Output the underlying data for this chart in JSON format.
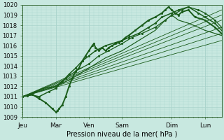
{
  "xlabel": "Pression niveau de la mer( hPa )",
  "ylim": [
    1009,
    1020
  ],
  "xlim": [
    0,
    6
  ],
  "yticks": [
    1009,
    1010,
    1011,
    1012,
    1013,
    1014,
    1015,
    1016,
    1017,
    1018,
    1019,
    1020
  ],
  "xtick_labels": [
    "Jeu",
    "Mar",
    "Ven",
    "Sam",
    "Dim",
    "Lun"
  ],
  "xtick_positions": [
    0.0,
    1.0,
    2.0,
    3.0,
    4.5,
    5.5
  ],
  "background_color": "#c8e8e0",
  "grid_color": "#aad4cc",
  "line_color": "#1a5c1a",
  "straight_lines": [
    {
      "x0": 0.0,
      "y0": 1011.0,
      "x1": 6.0,
      "y1": 1016.5,
      "lw": 0.6
    },
    {
      "x0": 0.0,
      "y0": 1011.0,
      "x1": 6.0,
      "y1": 1017.2,
      "lw": 0.6
    },
    {
      "x0": 0.0,
      "y0": 1011.0,
      "x1": 6.0,
      "y1": 1017.8,
      "lw": 0.6
    },
    {
      "x0": 0.0,
      "y0": 1011.0,
      "x1": 6.0,
      "y1": 1018.5,
      "lw": 0.6
    },
    {
      "x0": 0.0,
      "y0": 1011.0,
      "x1": 6.0,
      "y1": 1019.0,
      "lw": 0.6
    },
    {
      "x0": 0.0,
      "y0": 1011.0,
      "x1": 6.0,
      "y1": 1019.5,
      "lw": 0.6
    }
  ],
  "wiggly_lines": [
    {
      "x": [
        0.0,
        0.15,
        0.3,
        0.5,
        0.7,
        0.9,
        1.0,
        1.05,
        1.1,
        1.2,
        1.3,
        1.4,
        1.5,
        1.6,
        1.7,
        1.8,
        1.9,
        2.0,
        2.1,
        2.15,
        2.2,
        2.3,
        2.4,
        2.5,
        2.6,
        2.7,
        2.8,
        2.9,
        3.0,
        3.1,
        3.2,
        3.4,
        3.6,
        3.8,
        4.0,
        4.2,
        4.3,
        4.4,
        4.5,
        4.6,
        4.7,
        4.8,
        5.0,
        5.2,
        5.5,
        5.8,
        6.0
      ],
      "y": [
        1011.0,
        1011.1,
        1011.2,
        1010.8,
        1010.4,
        1009.8,
        1009.5,
        1009.6,
        1009.8,
        1010.2,
        1011.0,
        1012.0,
        1012.8,
        1013.5,
        1013.8,
        1014.5,
        1015.0,
        1015.5,
        1016.0,
        1016.2,
        1015.8,
        1015.5,
        1015.8,
        1015.5,
        1015.8,
        1016.0,
        1016.2,
        1016.3,
        1016.5,
        1016.8,
        1017.0,
        1017.5,
        1018.0,
        1018.5,
        1018.8,
        1019.2,
        1019.5,
        1019.8,
        1019.5,
        1019.2,
        1019.0,
        1019.3,
        1019.5,
        1018.8,
        1018.5,
        1017.8,
        1017.2
      ],
      "lw": 1.4,
      "marker": true
    },
    {
      "x": [
        0.0,
        0.2,
        0.5,
        0.8,
        1.0,
        1.2,
        1.4,
        1.6,
        1.8,
        2.0,
        2.2,
        2.5,
        2.8,
        3.0,
        3.2,
        3.5,
        3.8,
        4.0,
        4.2,
        4.5,
        4.7,
        5.0,
        5.3,
        5.5,
        5.8,
        6.0
      ],
      "y": [
        1011.0,
        1011.2,
        1011.0,
        1011.5,
        1011.8,
        1012.5,
        1013.2,
        1013.8,
        1014.5,
        1015.0,
        1015.5,
        1016.0,
        1016.3,
        1016.5,
        1016.8,
        1017.2,
        1017.8,
        1018.2,
        1018.8,
        1019.2,
        1019.5,
        1019.8,
        1019.2,
        1018.8,
        1018.2,
        1017.5
      ],
      "lw": 1.1,
      "marker": true
    },
    {
      "x": [
        0.0,
        0.3,
        0.6,
        1.0,
        1.3,
        1.6,
        2.0,
        2.3,
        2.6,
        3.0,
        3.3,
        3.6,
        4.0,
        4.3,
        4.5,
        4.8,
        5.0,
        5.3,
        5.5,
        5.8,
        6.0
      ],
      "y": [
        1011.0,
        1011.3,
        1011.8,
        1012.0,
        1012.8,
        1013.5,
        1014.2,
        1015.0,
        1015.5,
        1016.2,
        1016.8,
        1017.2,
        1017.8,
        1018.5,
        1019.0,
        1019.5,
        1019.8,
        1019.5,
        1019.2,
        1018.5,
        1017.8
      ],
      "lw": 0.9,
      "marker": true
    },
    {
      "x": [
        0.0,
        0.5,
        1.0,
        1.5,
        2.0,
        2.5,
        3.0,
        3.5,
        4.0,
        4.3,
        4.5,
        4.7,
        5.0,
        5.3,
        5.5,
        6.0
      ],
      "y": [
        1011.0,
        1011.5,
        1012.0,
        1012.8,
        1013.8,
        1014.8,
        1015.5,
        1016.5,
        1017.5,
        1018.5,
        1019.0,
        1018.5,
        1018.2,
        1017.8,
        1017.5,
        1017.0
      ],
      "lw": 0.85,
      "marker": false
    }
  ]
}
